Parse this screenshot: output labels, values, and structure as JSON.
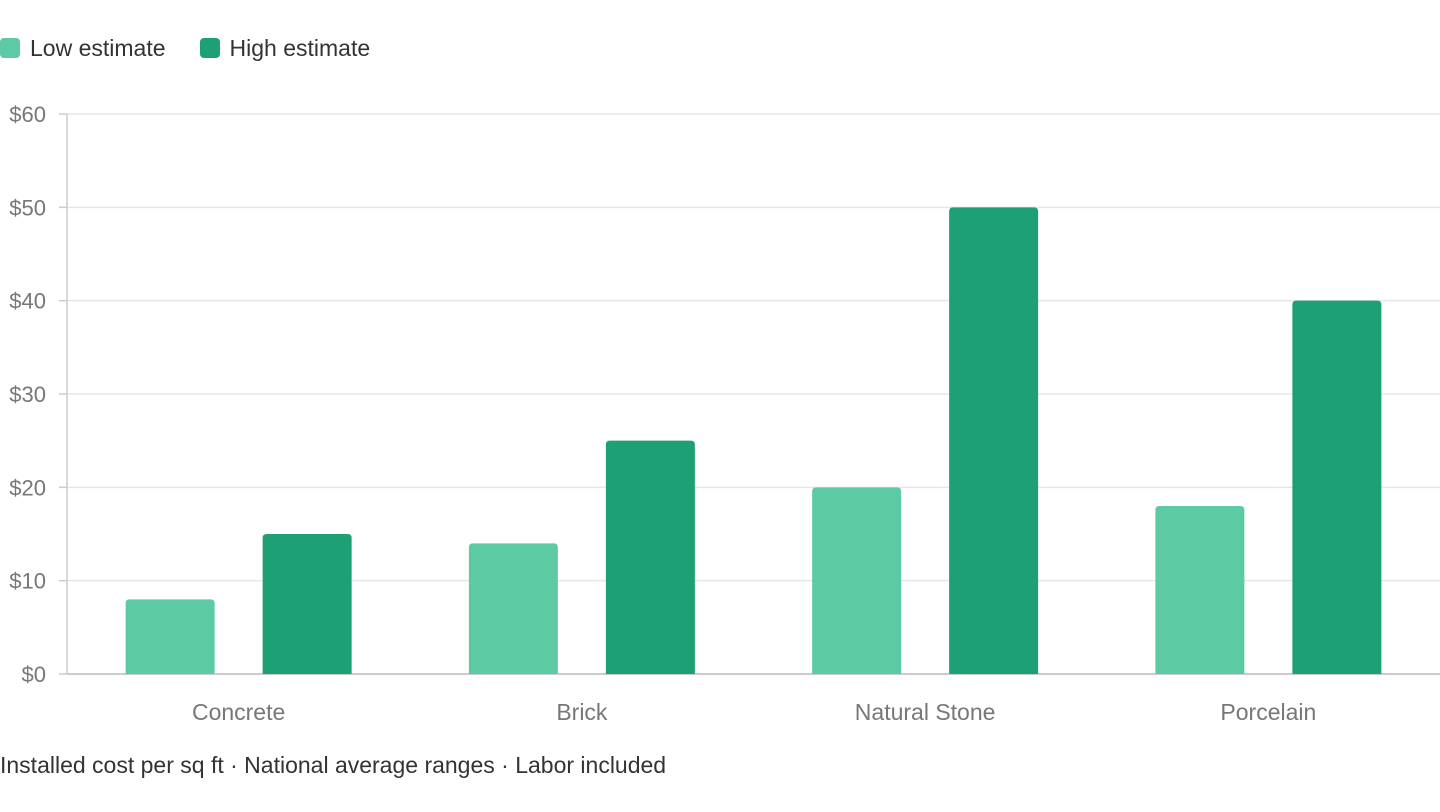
{
  "colors": {
    "low": "#5ccba3",
    "high": "#1ea076",
    "grid": "#e6e6e6",
    "axis": "#cccccc",
    "tick_text": "#777777",
    "text": "#333333"
  },
  "legend": [
    {
      "label": "Low estimate",
      "color": "#5ccba3"
    },
    {
      "label": "High estimate",
      "color": "#1ea076"
    }
  ],
  "footnote": "Installed cost per sq ft · National average ranges · Labor included",
  "chart_data": {
    "type": "bar",
    "categories": [
      "Concrete",
      "Brick",
      "Natural Stone",
      "Porcelain"
    ],
    "series": [
      {
        "name": "Low estimate",
        "values": [
          8,
          14,
          20,
          18
        ]
      },
      {
        "name": "High estimate",
        "values": [
          15,
          25,
          50,
          40
        ]
      }
    ],
    "ylim": [
      0,
      60
    ],
    "yticks": [
      0,
      10,
      20,
      30,
      40,
      50,
      60
    ],
    "ytick_labels": [
      "$0",
      "$10",
      "$20",
      "$30",
      "$40",
      "$50",
      "$60"
    ],
    "grid": true,
    "legend_position": "top-left",
    "xlabel": "",
    "ylabel": ""
  }
}
